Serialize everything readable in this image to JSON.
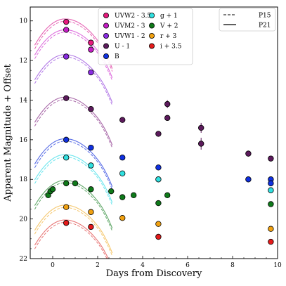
{
  "chart_data": {
    "type": "scatter",
    "xlabel": "Days from Discovery",
    "ylabel": "Apparent Magnitude + Offset",
    "xlim": [
      -1,
      10
    ],
    "ylim": [
      22,
      9.3
    ],
    "y_inverted": true,
    "xticks": [
      0,
      2,
      4,
      6,
      8,
      10
    ],
    "yticks": [
      10,
      12,
      14,
      16,
      18,
      20,
      22
    ],
    "grid": false,
    "legend_filters": {
      "placement": "top-center",
      "columns": 2
    },
    "legend_models": {
      "placement": "top-right",
      "entries": [
        {
          "label": "P15",
          "style": "dashed"
        },
        {
          "label": "P21",
          "style": "solid"
        }
      ]
    },
    "series": [
      {
        "name": "UVW2 - 3.5",
        "color": "#e6197d",
        "curve_color": "#e664b4",
        "points": [
          [
            0.6,
            10.05
          ],
          [
            1.7,
            11.1
          ]
        ],
        "peak": [
          0.55,
          9.9
        ],
        "k": 0.52
      },
      {
        "name": "UVM2 - 3",
        "color": "#c41cc4",
        "curve_color": "#de72de",
        "points": [
          [
            0.6,
            10.45
          ],
          [
            1.7,
            11.45
          ]
        ],
        "peak": [
          0.55,
          10.45
        ],
        "k": 0.5
      },
      {
        "name": "UVW1 - 2",
        "color": "#8a2be2",
        "curve_color": "#b27ae6",
        "points": [
          [
            0.6,
            11.8
          ],
          [
            1.7,
            12.6
          ]
        ],
        "peak": [
          0.55,
          11.7
        ],
        "k": 0.5
      },
      {
        "name": "U - 1",
        "color": "#5c1a5c",
        "curve_color": "#a868a8",
        "points": [
          [
            0.6,
            13.9
          ],
          [
            1.7,
            14.45
          ],
          [
            3.1,
            15.0
          ],
          [
            4.7,
            15.7
          ],
          [
            5.1,
            14.2
          ],
          [
            5.1,
            14.9
          ],
          [
            6.6,
            15.4
          ],
          [
            6.6,
            16.2
          ],
          [
            8.7,
            16.7
          ],
          [
            9.7,
            16.95
          ]
        ],
        "errors": [
          0,
          0,
          0,
          0,
          0.2,
          0,
          0.25,
          0.3,
          0.15,
          0
        ],
        "peak": [
          0.55,
          13.85
        ],
        "k": 0.5
      },
      {
        "name": "B",
        "color": "#1030e0",
        "curve_color": "#5a6ee6",
        "points": [
          [
            0.6,
            16.0
          ],
          [
            1.7,
            16.4
          ],
          [
            3.1,
            16.9
          ],
          [
            4.7,
            17.4
          ],
          [
            8.7,
            18.0
          ],
          [
            9.7,
            18.0
          ],
          [
            9.7,
            18.2
          ]
        ],
        "peak": [
          0.55,
          15.95
        ],
        "k": 0.5
      },
      {
        "name": "g + 1",
        "color": "#30e0e0",
        "curve_color": "#6ee6ee",
        "points": [
          [
            0.6,
            16.9
          ],
          [
            1.7,
            17.3
          ],
          [
            3.1,
            17.7
          ],
          [
            4.7,
            18.0
          ],
          [
            9.7,
            18.55
          ]
        ],
        "peak": [
          0.55,
          16.75
        ],
        "k": 0.5
      },
      {
        "name": "V + 2",
        "color": "#0f7a1a",
        "curve_color": "#62a86a",
        "points": [
          [
            -0.2,
            18.8
          ],
          [
            -0.1,
            18.6
          ],
          [
            0.0,
            18.5
          ],
          [
            0.6,
            18.2
          ],
          [
            1.0,
            18.2
          ],
          [
            1.7,
            18.5
          ],
          [
            2.6,
            18.6
          ],
          [
            3.1,
            18.9
          ],
          [
            3.6,
            18.8
          ],
          [
            4.7,
            19.2
          ],
          [
            5.1,
            18.8
          ],
          [
            9.7,
            19.25
          ]
        ],
        "peak": [
          0.55,
          18.05
        ],
        "k": 0.5
      },
      {
        "name": "r + 3",
        "color": "#f0a010",
        "curve_color": "#f5c870",
        "points": [
          [
            0.6,
            19.4
          ],
          [
            1.7,
            19.65
          ],
          [
            3.1,
            19.95
          ],
          [
            4.7,
            20.25
          ],
          [
            9.7,
            20.5
          ]
        ],
        "peak": [
          0.55,
          19.3
        ],
        "k": 0.5
      },
      {
        "name": "i + 3.5",
        "color": "#e41a1a",
        "curve_color": "#e87878",
        "points": [
          [
            0.6,
            20.2
          ],
          [
            1.7,
            20.4
          ],
          [
            4.7,
            20.9
          ],
          [
            9.7,
            21.15
          ]
        ],
        "peak": [
          0.55,
          20.05
        ],
        "k": 0.5
      }
    ],
    "model_x_range": [
      -0.8,
      2.65
    ]
  }
}
